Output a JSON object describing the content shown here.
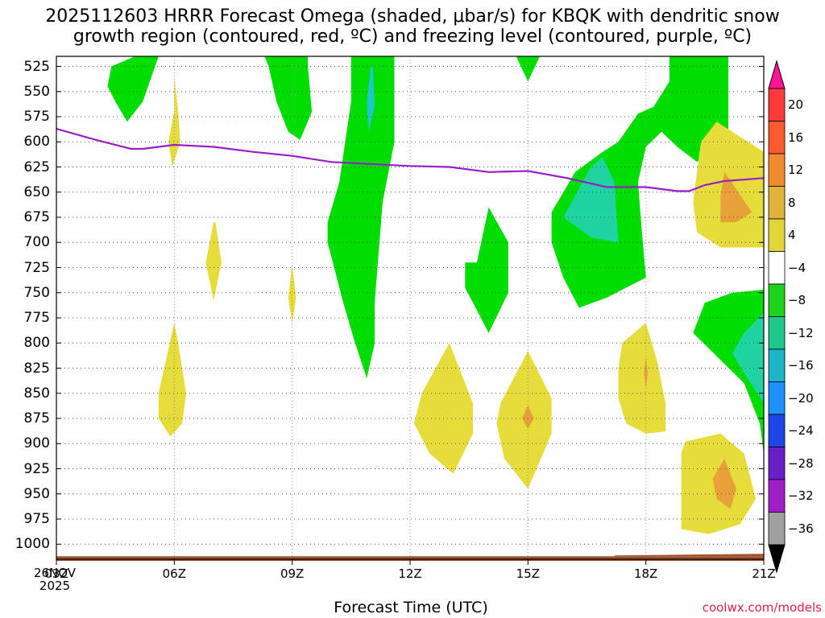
{
  "title": {
    "line1": "2025112603 HRRR Forecast Omega (shaded, μbar/s) for KBQK with dendritic snow",
    "line2": "growth region (contoured, red, ºC) and freezing level (contoured, purple, ºC)"
  },
  "footer": {
    "xlabel": "Forecast Time (UTC)",
    "credit": "coolwx.com/models",
    "date_line1": "26NOV",
    "date_line2": "2025"
  },
  "chart_data": {
    "type": "contour",
    "x": {
      "unit": "forecast hour UTC",
      "range": [
        3,
        21
      ],
      "ticks": [
        3,
        6,
        9,
        12,
        15,
        18,
        21
      ],
      "tick_labels": [
        "03Z",
        "06Z",
        "09Z",
        "12Z",
        "15Z",
        "18Z",
        "21Z"
      ]
    },
    "y": {
      "unit": "hPa",
      "range": [
        1015,
        515
      ],
      "ticks": [
        525,
        550,
        575,
        600,
        625,
        650,
        675,
        700,
        725,
        750,
        775,
        800,
        825,
        850,
        875,
        900,
        925,
        950,
        975,
        1000
      ],
      "tick_labels": [
        "525",
        "550",
        "575",
        "600",
        "625",
        "650",
        "675",
        "700",
        "725",
        "750",
        "775",
        "800",
        "825",
        "850",
        "875",
        "900",
        "925",
        "950",
        "975",
        "1000"
      ]
    },
    "grid": true,
    "colorbar": {
      "labels": [
        "20",
        "16",
        "12",
        "8",
        "4",
        "−4",
        "−8",
        "−12",
        "−16",
        "−20",
        "−24",
        "−28",
        "−32",
        "−36"
      ],
      "colors": [
        "#ff3a3a",
        "#ff5a2e",
        "#f08a2e",
        "#e3b23a",
        "#e3d437",
        "#ffffff",
        "#1ed21e",
        "#1ec88c",
        "#1eb4c8",
        "#1e90ff",
        "#1e46e6",
        "#6a1ec8",
        "#a01ec8",
        "#a0a0a0"
      ],
      "top_arrow_color": "#ff1493",
      "bottom_arrow_color": "#000000"
    },
    "omega_fill_colors": {
      "neg4": "#00dd00",
      "neg8": "#1fd4a0",
      "neg12": "#1ec8c8",
      "pos4": "#e6dc3a",
      "pos8": "#e8a03a"
    },
    "freezing_level": {
      "color": "#9a1ec8",
      "points": [
        [
          3,
          587
        ],
        [
          4,
          598
        ],
        [
          4.9,
          607
        ],
        [
          5.2,
          607
        ],
        [
          6,
          603
        ],
        [
          7,
          605
        ],
        [
          8,
          610
        ],
        [
          9,
          614
        ],
        [
          10,
          620
        ],
        [
          11,
          622
        ],
        [
          12,
          624
        ],
        [
          13,
          625
        ],
        [
          14,
          630
        ],
        [
          15,
          629
        ],
        [
          16,
          636
        ],
        [
          17,
          645
        ],
        [
          18,
          645
        ],
        [
          18.8,
          649
        ],
        [
          19.1,
          649
        ],
        [
          19.5,
          643
        ],
        [
          20,
          639
        ],
        [
          21,
          636
        ]
      ]
    },
    "regions": [
      {
        "sign": "up",
        "level": 4,
        "pts": [
          [
            5,
            515
          ],
          [
            4.4,
            525
          ],
          [
            4.3,
            545
          ],
          [
            4.5,
            560
          ],
          [
            4.8,
            580
          ],
          [
            5.2,
            560
          ],
          [
            5.6,
            515
          ]
        ]
      },
      {
        "sign": "up",
        "level": 4,
        "pts": [
          [
            8.3,
            515
          ],
          [
            8.4,
            525
          ],
          [
            8.6,
            560
          ],
          [
            8.9,
            590
          ],
          [
            9.2,
            598
          ],
          [
            9.5,
            570
          ],
          [
            9.4,
            525
          ],
          [
            9.4,
            515
          ]
        ]
      },
      {
        "sign": "up",
        "level": 4,
        "pts": [
          [
            10.5,
            515
          ],
          [
            10.5,
            560
          ],
          [
            10.2,
            640
          ],
          [
            9.9,
            680
          ],
          [
            9.9,
            700
          ],
          [
            10.3,
            760
          ],
          [
            10.6,
            800
          ],
          [
            10.9,
            835
          ],
          [
            11.1,
            800
          ],
          [
            11.1,
            760
          ],
          [
            11.3,
            660
          ],
          [
            11.6,
            600
          ],
          [
            11.6,
            515
          ]
        ]
      },
      {
        "sign": "up",
        "level": 12,
        "pts": [
          [
            11,
            525
          ],
          [
            10.9,
            560
          ],
          [
            10.95,
            590
          ],
          [
            11.1,
            565
          ],
          [
            11.05,
            525
          ]
        ]
      },
      {
        "sign": "up",
        "level": 4,
        "pts": [
          [
            14.7,
            515
          ],
          [
            15,
            540
          ],
          [
            15.3,
            515
          ]
        ]
      },
      {
        "sign": "up",
        "level": 4,
        "pts": [
          [
            13.7,
            720
          ],
          [
            14,
            665
          ],
          [
            14.5,
            700
          ],
          [
            14.5,
            750
          ],
          [
            14,
            790
          ],
          [
            13.4,
            745
          ],
          [
            13.4,
            720
          ]
        ]
      },
      {
        "sign": "up",
        "level": 4,
        "pts": [
          [
            18.6,
            515
          ],
          [
            18.6,
            540
          ],
          [
            18.2,
            565
          ],
          [
            17.8,
            572
          ],
          [
            17.3,
            600
          ],
          [
            16.9,
            610
          ],
          [
            16.2,
            630
          ],
          [
            15.6,
            670
          ],
          [
            15.6,
            700
          ],
          [
            15.9,
            735
          ],
          [
            16.3,
            765
          ],
          [
            17,
            755
          ],
          [
            18,
            735
          ],
          [
            17.9,
            690
          ],
          [
            17.8,
            640
          ],
          [
            18,
            605
          ],
          [
            18.4,
            590
          ],
          [
            18.8,
            605
          ],
          [
            19.3,
            620
          ],
          [
            19.6,
            610
          ],
          [
            20.1,
            600
          ],
          [
            20.1,
            515
          ]
        ]
      },
      {
        "sign": "up",
        "level": 8,
        "pts": [
          [
            16.6,
            625
          ],
          [
            15.9,
            675
          ],
          [
            16.6,
            695
          ],
          [
            17.3,
            700
          ],
          [
            17.2,
            640
          ],
          [
            16.9,
            615
          ]
        ]
      },
      {
        "sign": "up",
        "level": 4,
        "pts": [
          [
            21,
            747
          ],
          [
            20.2,
            750
          ],
          [
            19.5,
            760
          ],
          [
            19.2,
            790
          ],
          [
            20.5,
            840
          ],
          [
            20.9,
            880
          ],
          [
            21,
            910
          ]
        ]
      },
      {
        "sign": "up",
        "level": 8,
        "pts": [
          [
            21,
            770
          ],
          [
            20.5,
            790
          ],
          [
            20.2,
            810
          ],
          [
            20.5,
            830
          ],
          [
            21,
            860
          ]
        ]
      },
      {
        "sign": "down",
        "level": 4,
        "pts": [
          [
            6,
            570
          ],
          [
            5.85,
            600
          ],
          [
            5.95,
            625
          ],
          [
            6.15,
            600
          ],
          [
            6.1,
            570
          ],
          [
            6,
            535
          ]
        ]
      },
      {
        "sign": "down",
        "level": 4,
        "pts": [
          [
            7,
            680
          ],
          [
            6.8,
            720
          ],
          [
            7,
            758
          ],
          [
            7.2,
            720
          ],
          [
            7.05,
            680
          ]
        ]
      },
      {
        "sign": "down",
        "level": 4,
        "pts": [
          [
            9,
            722
          ],
          [
            8.9,
            755
          ],
          [
            9,
            780
          ],
          [
            9.1,
            755
          ]
        ]
      },
      {
        "sign": "down",
        "level": 4,
        "pts": [
          [
            6,
            780
          ],
          [
            5.6,
            850
          ],
          [
            5.6,
            875
          ],
          [
            5.9,
            893
          ],
          [
            6.2,
            880
          ],
          [
            6.3,
            850
          ],
          [
            6.1,
            800
          ]
        ]
      },
      {
        "sign": "down",
        "level": 4,
        "pts": [
          [
            13,
            800
          ],
          [
            12.3,
            850
          ],
          [
            12.1,
            880
          ],
          [
            12.5,
            910
          ],
          [
            13.1,
            930
          ],
          [
            13.6,
            890
          ],
          [
            13.6,
            860
          ]
        ]
      },
      {
        "sign": "down",
        "level": 4,
        "pts": [
          [
            15,
            808
          ],
          [
            14.3,
            860
          ],
          [
            14.2,
            880
          ],
          [
            14.4,
            915
          ],
          [
            15,
            945
          ],
          [
            15.6,
            890
          ],
          [
            15.6,
            855
          ]
        ]
      },
      {
        "sign": "down",
        "level": 8,
        "pts": [
          [
            15,
            862
          ],
          [
            14.85,
            875
          ],
          [
            15,
            885
          ],
          [
            15.15,
            875
          ]
        ]
      },
      {
        "sign": "down",
        "level": 4,
        "pts": [
          [
            18,
            780
          ],
          [
            17.4,
            800
          ],
          [
            17.3,
            825
          ],
          [
            17.3,
            855
          ],
          [
            17.5,
            880
          ],
          [
            18,
            890
          ],
          [
            18.5,
            888
          ],
          [
            18.5,
            860
          ],
          [
            18.3,
            820
          ]
        ]
      },
      {
        "sign": "down",
        "level": 8,
        "pts": [
          [
            18,
            815
          ],
          [
            17.95,
            830
          ],
          [
            18,
            845
          ],
          [
            18.05,
            830
          ]
        ]
      },
      {
        "sign": "down",
        "level": 4,
        "pts": [
          [
            19.9,
            890
          ],
          [
            19,
            898
          ],
          [
            18.9,
            910
          ],
          [
            18.9,
            960
          ],
          [
            18.9,
            985
          ],
          [
            19.6,
            990
          ],
          [
            20.4,
            980
          ],
          [
            20.8,
            955
          ],
          [
            20.5,
            910
          ]
        ]
      },
      {
        "sign": "down",
        "level": 8,
        "pts": [
          [
            20,
            915
          ],
          [
            19.7,
            935
          ],
          [
            19.8,
            955
          ],
          [
            20.15,
            965
          ],
          [
            20.3,
            945
          ]
        ]
      },
      {
        "sign": "down",
        "level": 4,
        "pts": [
          [
            19.8,
            580
          ],
          [
            19.4,
            600
          ],
          [
            19.3,
            630
          ],
          [
            19.2,
            660
          ],
          [
            19.3,
            690
          ],
          [
            19.9,
            705
          ],
          [
            21,
            705
          ],
          [
            21,
            610
          ]
        ]
      },
      {
        "sign": "down",
        "level": 8,
        "pts": [
          [
            20,
            630
          ],
          [
            19.9,
            655
          ],
          [
            19.9,
            680
          ],
          [
            20.3,
            680
          ],
          [
            20.7,
            670
          ]
        ]
      }
    ],
    "ground_band": {
      "color": "#a0522d",
      "pressure_top": 1012,
      "pressure_bottom": 1015
    }
  }
}
